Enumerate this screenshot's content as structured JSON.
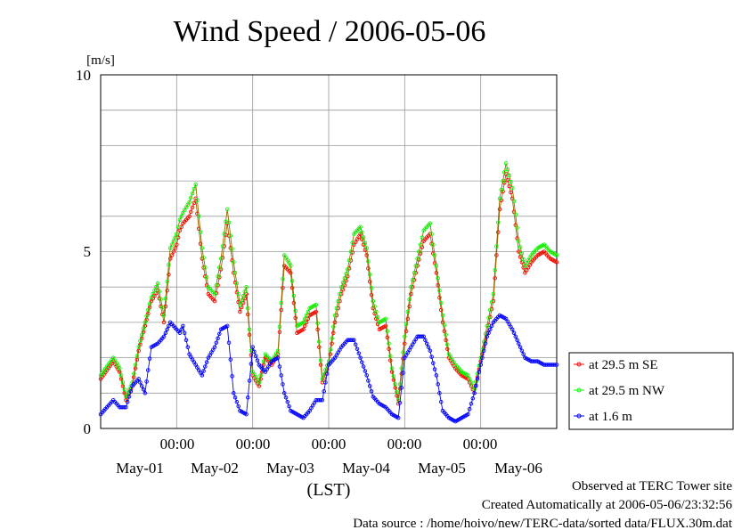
{
  "chart_data": {
    "type": "line",
    "title": "Wind Speed / 2006-05-06",
    "ylabel": "[m/s]",
    "xlabel": "(LST)",
    "ylim": [
      0,
      10
    ],
    "yticks": [
      "0",
      "5",
      "10"
    ],
    "xlim_hours": [
      0,
      144
    ],
    "x_start": "2006-05-01 00:00",
    "time_ticks": [
      "00:00",
      "00:00",
      "00:00",
      "00:00",
      "00:00"
    ],
    "day_labels": [
      "May-01",
      "May-02",
      "May-03",
      "May-04",
      "May-05",
      "May-06"
    ],
    "grid": true,
    "legend_placement": "right",
    "series": [
      {
        "name": "at 29.5 m SE",
        "color": "#ff0000",
        "x_hours": [
          0,
          4,
          6,
          8,
          10,
          12,
          14,
          16,
          18,
          20,
          22,
          24,
          25,
          26,
          28,
          30,
          32,
          34,
          36,
          38,
          40,
          42,
          44,
          46,
          48,
          50,
          52,
          54,
          56,
          58,
          60,
          62,
          64,
          66,
          68,
          70,
          72,
          74,
          76,
          78,
          80,
          82,
          84,
          86,
          88,
          90,
          92,
          94,
          96,
          98,
          100,
          102,
          104,
          106,
          108,
          110,
          112,
          114,
          116,
          118,
          120,
          122,
          124,
          126,
          128,
          130,
          132,
          134,
          136,
          138,
          140,
          142,
          144
        ],
        "values": [
          1.4,
          1.9,
          1.6,
          0.8,
          1.2,
          2.2,
          2.9,
          3.6,
          3.9,
          3.0,
          4.8,
          5.2,
          5.6,
          5.8,
          6.0,
          6.5,
          4.8,
          3.8,
          3.6,
          4.5,
          5.8,
          4.4,
          3.3,
          3.8,
          1.5,
          1.2,
          2.0,
          1.8,
          2.1,
          4.6,
          4.4,
          2.7,
          2.8,
          3.2,
          3.3,
          1.3,
          1.8,
          3.0,
          3.8,
          4.3,
          5.2,
          5.5,
          4.9,
          3.4,
          2.8,
          2.9,
          1.6,
          0.7,
          2.4,
          3.8,
          4.6,
          5.3,
          5.5,
          4.4,
          3.0,
          2.0,
          1.7,
          1.5,
          1.4,
          1.0,
          1.9,
          2.7,
          3.6,
          6.2,
          7.2,
          6.5,
          5.0,
          4.4,
          4.7,
          4.9,
          5.0,
          4.8,
          4.7
        ],
        "marker_every": 0.5
      },
      {
        "name": "at 29.5 m NW",
        "color": "#00ff00",
        "x_hours": [
          0,
          4,
          6,
          8,
          10,
          12,
          14,
          16,
          18,
          20,
          22,
          24,
          25,
          26,
          28,
          30,
          32,
          34,
          36,
          38,
          40,
          42,
          44,
          46,
          48,
          50,
          52,
          54,
          56,
          58,
          60,
          62,
          64,
          66,
          68,
          70,
          72,
          74,
          76,
          78,
          80,
          82,
          84,
          86,
          88,
          90,
          92,
          94,
          96,
          98,
          100,
          102,
          104,
          106,
          108,
          110,
          112,
          114,
          116,
          118,
          120,
          122,
          124,
          126,
          128,
          130,
          132,
          134,
          136,
          138,
          140,
          142,
          144
        ],
        "values": [
          1.5,
          2.0,
          1.7,
          0.9,
          1.3,
          2.3,
          3.0,
          3.7,
          4.1,
          3.2,
          5.1,
          5.5,
          5.9,
          6.1,
          6.4,
          6.9,
          5.1,
          4.0,
          3.8,
          4.8,
          6.2,
          4.7,
          3.5,
          4.0,
          1.6,
          1.3,
          2.1,
          1.9,
          2.2,
          4.9,
          4.6,
          2.9,
          3.0,
          3.4,
          3.5,
          1.4,
          1.9,
          3.2,
          4.0,
          4.5,
          5.5,
          5.7,
          5.1,
          3.6,
          3.0,
          3.1,
          1.7,
          0.8,
          2.6,
          4.0,
          4.8,
          5.6,
          5.8,
          4.6,
          3.2,
          2.1,
          1.8,
          1.6,
          1.5,
          1.1,
          2.0,
          2.9,
          3.8,
          6.5,
          7.5,
          6.8,
          5.3,
          4.6,
          4.9,
          5.1,
          5.2,
          5.0,
          4.9
        ],
        "marker_every": 0.5
      },
      {
        "name": "at 1.6 m",
        "color": "#0000ff",
        "x_hours": [
          0,
          4,
          6,
          8,
          10,
          12,
          14,
          16,
          18,
          20,
          22,
          24,
          25,
          26,
          28,
          30,
          32,
          34,
          36,
          38,
          40,
          42,
          44,
          46,
          48,
          50,
          52,
          54,
          56,
          58,
          60,
          62,
          64,
          66,
          68,
          70,
          72,
          74,
          76,
          78,
          80,
          82,
          84,
          86,
          88,
          90,
          92,
          94,
          96,
          98,
          100,
          102,
          104,
          106,
          108,
          110,
          112,
          114,
          116,
          118,
          120,
          122,
          124,
          126,
          128,
          130,
          132,
          134,
          136,
          138,
          140,
          142,
          144
        ],
        "values": [
          0.4,
          0.8,
          0.6,
          0.6,
          1.2,
          1.4,
          1.0,
          2.3,
          2.4,
          2.6,
          3.0,
          2.8,
          2.7,
          2.9,
          2.1,
          1.8,
          1.5,
          2.0,
          2.3,
          2.8,
          2.9,
          1.0,
          0.5,
          0.4,
          2.3,
          1.8,
          1.6,
          1.9,
          2.0,
          1.0,
          0.5,
          0.4,
          0.3,
          0.5,
          0.8,
          0.8,
          1.8,
          2.0,
          2.3,
          2.5,
          2.5,
          2.0,
          1.5,
          0.9,
          0.7,
          0.6,
          0.4,
          0.3,
          2.0,
          2.3,
          2.6,
          2.6,
          2.2,
          1.5,
          0.5,
          0.3,
          0.2,
          0.3,
          0.4,
          1.0,
          1.8,
          2.6,
          3.0,
          3.2,
          3.1,
          2.8,
          2.4,
          2.0,
          1.9,
          1.9,
          1.8,
          1.8,
          1.8
        ],
        "marker_every": 0.5
      }
    ]
  },
  "footer": {
    "observed": "Observed at TERC Tower site",
    "created": "Created Automatically at 2006-05-06/23:32:56",
    "source": "Data source : /home/hoivo/new/TERC-data/sorted  data/FLUX.30m.dat"
  },
  "colors": {
    "se": "#ff0000",
    "nw": "#00ff00",
    "low": "#0000ff",
    "grid": "#999999",
    "connector": "#996600"
  }
}
